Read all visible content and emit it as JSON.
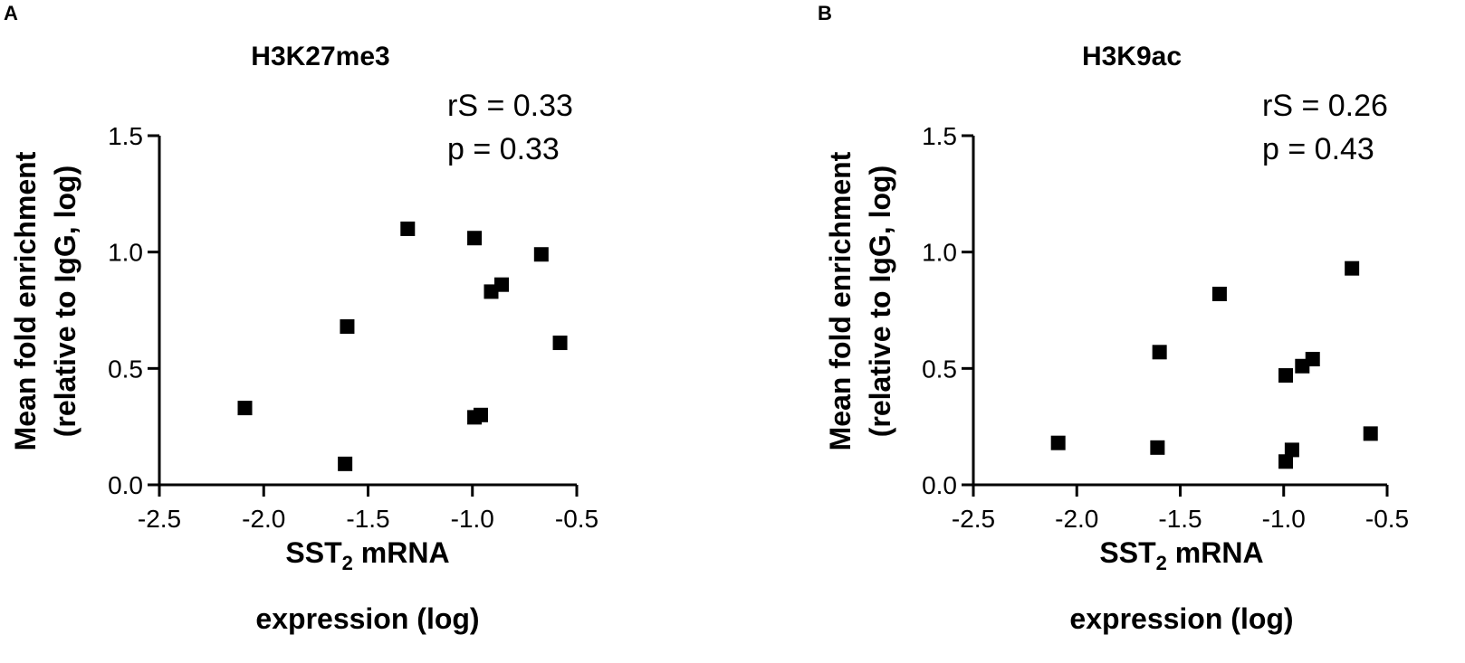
{
  "chart_data": [
    {
      "type": "scatter",
      "panel_label": "A",
      "title": "H3K27me3",
      "stats": {
        "rs": "rS = 0.33",
        "p": "p = 0.33"
      },
      "xlabel_main": "SST",
      "xlabel_sub": "2",
      "xlabel_rest": " mRNA",
      "xlabel_line2": "expression (log)",
      "ylabel_line1": "Mean fold enrichment",
      "ylabel_line2": "(relative to IgG, log)",
      "xlim": [
        -2.5,
        -0.5
      ],
      "ylim": [
        0.0,
        1.5
      ],
      "xticks": [
        "-2.5",
        "-2.0",
        "-1.5",
        "-1.0",
        "-0.5"
      ],
      "yticks": [
        "0.0",
        "0.5",
        "1.0",
        "1.5"
      ],
      "marker": "square",
      "points": [
        {
          "x": -2.09,
          "y": 0.33
        },
        {
          "x": -1.61,
          "y": 0.09
        },
        {
          "x": -1.6,
          "y": 0.68
        },
        {
          "x": -1.31,
          "y": 1.1
        },
        {
          "x": -0.99,
          "y": 1.06
        },
        {
          "x": -0.99,
          "y": 0.29
        },
        {
          "x": -0.96,
          "y": 0.3
        },
        {
          "x": -0.91,
          "y": 0.83
        },
        {
          "x": -0.86,
          "y": 0.86
        },
        {
          "x": -0.67,
          "y": 0.99
        },
        {
          "x": -0.58,
          "y": 0.61
        }
      ]
    },
    {
      "type": "scatter",
      "panel_label": "B",
      "title": "H3K9ac",
      "stats": {
        "rs": "rS = 0.26",
        "p": "p = 0.43"
      },
      "xlabel_main": "SST",
      "xlabel_sub": "2",
      "xlabel_rest": " mRNA",
      "xlabel_line2": "expression (log)",
      "ylabel_line1": "Mean fold enrichment",
      "ylabel_line2": "(relative to IgG, log)",
      "xlim": [
        -2.5,
        -0.5
      ],
      "ylim": [
        0.0,
        1.5
      ],
      "xticks": [
        "-2.5",
        "-2.0",
        "-1.5",
        "-1.0",
        "-0.5"
      ],
      "yticks": [
        "0.0",
        "0.5",
        "1.0",
        "1.5"
      ],
      "marker": "square",
      "points": [
        {
          "x": -2.09,
          "y": 0.18
        },
        {
          "x": -1.61,
          "y": 0.16
        },
        {
          "x": -1.6,
          "y": 0.57
        },
        {
          "x": -1.31,
          "y": 0.82
        },
        {
          "x": -0.99,
          "y": 0.47
        },
        {
          "x": -0.99,
          "y": 0.1
        },
        {
          "x": -0.96,
          "y": 0.15
        },
        {
          "x": -0.91,
          "y": 0.51
        },
        {
          "x": -0.86,
          "y": 0.54
        },
        {
          "x": -0.67,
          "y": 0.93
        },
        {
          "x": -0.58,
          "y": 0.22
        }
      ]
    }
  ]
}
